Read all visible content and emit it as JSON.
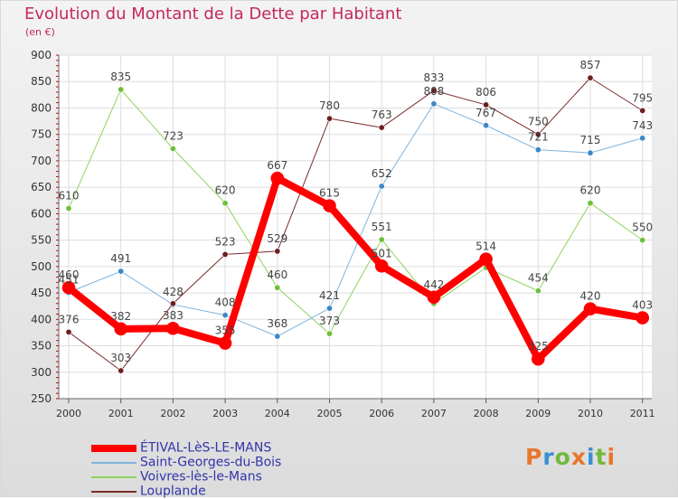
{
  "title": "Evolution du Montant de la Dette par Habitant",
  "subtitle": "(en €)",
  "logo_text": "Proxiti",
  "logo_colors": [
    "#e8762c",
    "#3a8fd1",
    "#6fb83c",
    "#e8762c",
    "#3a8fd1",
    "#6fb83c",
    "#e8762c"
  ],
  "chart_data": {
    "type": "line",
    "x": [
      "2000",
      "2001",
      "2002",
      "2003",
      "2004",
      "2005",
      "2006",
      "2007",
      "2008",
      "2009",
      "2010",
      "2011"
    ],
    "ylim": [
      250,
      900
    ],
    "yticks": [
      250,
      300,
      350,
      400,
      450,
      500,
      550,
      600,
      650,
      700,
      750,
      800,
      850,
      900
    ],
    "grid": true,
    "legend": "bottom-left",
    "series": [
      {
        "name": "Voivres-lès-le-Mans",
        "color": "#8fd360",
        "marker": "#6fbf3a",
        "width": 1,
        "values": [
          610,
          835,
          723,
          620,
          460,
          373,
          551,
          430,
          498,
          454,
          620,
          550
        ],
        "labels": [
          "610",
          "835",
          "723",
          "620",
          "460",
          "373",
          "551",
          "",
          "",
          "454",
          "620",
          "550"
        ]
      },
      {
        "name": "Saint-Georges-du-Bois",
        "color": "#7fb4dc",
        "marker": "#3c88c8",
        "width": 1,
        "values": [
          451,
          491,
          428,
          408,
          368,
          421,
          652,
          808,
          767,
          721,
          715,
          743
        ],
        "labels": [
          "451",
          "491",
          "428",
          "408",
          "368",
          "421",
          "652",
          "808",
          "767",
          "721",
          "715",
          "743"
        ]
      },
      {
        "name": "Louplande",
        "color": "#7a2a2a",
        "marker": "#6b1f1f",
        "width": 1,
        "values": [
          376,
          303,
          430,
          523,
          529,
          780,
          763,
          833,
          806,
          750,
          857,
          795
        ],
        "labels": [
          "376",
          "303",
          "",
          "523",
          "529",
          "780",
          "763",
          "833",
          "806",
          "750",
          "857",
          "795"
        ]
      },
      {
        "name": "ÉTIVAL-LèS-LE-MANS",
        "color": "#ff0000",
        "marker": "#ff0000",
        "width": 8,
        "values": [
          460,
          382,
          383,
          355,
          667,
          615,
          501,
          442,
          514,
          325,
          420,
          403
        ],
        "labels": [
          "460",
          "382",
          "383",
          "355",
          "667",
          "615",
          "501",
          "442",
          "514",
          "325",
          "420",
          "403"
        ]
      }
    ],
    "legend_order": [
      "ÉTIVAL-LèS-LE-MANS",
      "Saint-Georges-du-Bois",
      "Voivres-lès-le-Mans",
      "Louplande"
    ]
  }
}
